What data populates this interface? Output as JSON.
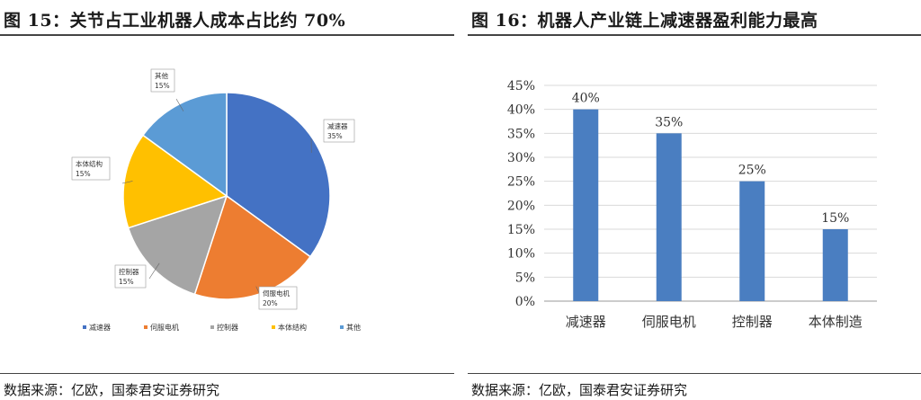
{
  "left": {
    "title": "图 15：关节占工业机器人成本占比约 70%",
    "source": "数据来源：亿欧，国泰君安证券研究"
  },
  "right": {
    "title": "图 16：机器人产业链上减速器盈利能力最高",
    "source": "数据来源：亿欧，国泰君安证券研究"
  },
  "chart_data": [
    {
      "type": "pie",
      "title": "",
      "slices": [
        {
          "name": "减速器",
          "value": 35,
          "label": "35%",
          "color": "#4472C4"
        },
        {
          "name": "伺服电机",
          "value": 20,
          "label": "20%",
          "color": "#ED7D31"
        },
        {
          "name": "控制器",
          "value": 15,
          "label": "15%",
          "color": "#A5A5A5"
        },
        {
          "name": "本体结构",
          "value": 15,
          "label": "15%",
          "color": "#FFC000"
        },
        {
          "name": "其他",
          "value": 15,
          "label": "15%",
          "color": "#5B9BD5"
        }
      ],
      "legend_position": "bottom"
    },
    {
      "type": "bar",
      "title": "",
      "categories": [
        "减速器",
        "伺服电机",
        "控制器",
        "本体制造"
      ],
      "values": [
        40,
        35,
        25,
        15
      ],
      "value_labels": [
        "40%",
        "35%",
        "25%",
        "15%"
      ],
      "ylim": [
        0,
        45
      ],
      "yticks": [
        "0%",
        "5%",
        "10%",
        "15%",
        "20%",
        "25%",
        "30%",
        "35%",
        "40%",
        "45%"
      ],
      "bar_color": "#4A7EC1",
      "grid": true
    }
  ]
}
